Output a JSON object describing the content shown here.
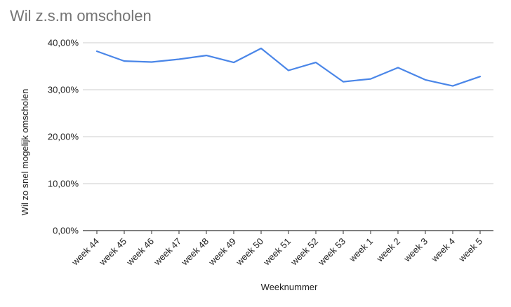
{
  "chart_data": {
    "type": "line",
    "title": "Wil z.s.m omscholen",
    "xlabel": "Weeknummer",
    "ylabel": "Wil zo snel mogelijk omscholen",
    "categories": [
      "week 44",
      "week 45",
      "week 46",
      "week 47",
      "week 48",
      "week 49",
      "week 50",
      "week 51",
      "week 52",
      "week 53",
      "week 1",
      "week 2",
      "week 3",
      "week 4",
      "week 5"
    ],
    "series": [
      {
        "values": [
          38.2,
          36.1,
          35.9,
          36.5,
          37.3,
          35.8,
          38.8,
          34.1,
          35.8,
          31.7,
          32.3,
          34.7,
          32.1,
          30.8,
          32.8
        ],
        "color": "#4a86e8"
      }
    ],
    "yticks": [
      0,
      10,
      20,
      30,
      40
    ],
    "ytick_labels": [
      "0,00%",
      "10,00%",
      "20,00%",
      "30,00%",
      "40,00%"
    ],
    "ylim": [
      0,
      40
    ],
    "grid": true,
    "legend": "none",
    "colors": {
      "title": "#757575",
      "grid": "#cccccc",
      "axis": "#333333",
      "text": "#222222"
    }
  }
}
